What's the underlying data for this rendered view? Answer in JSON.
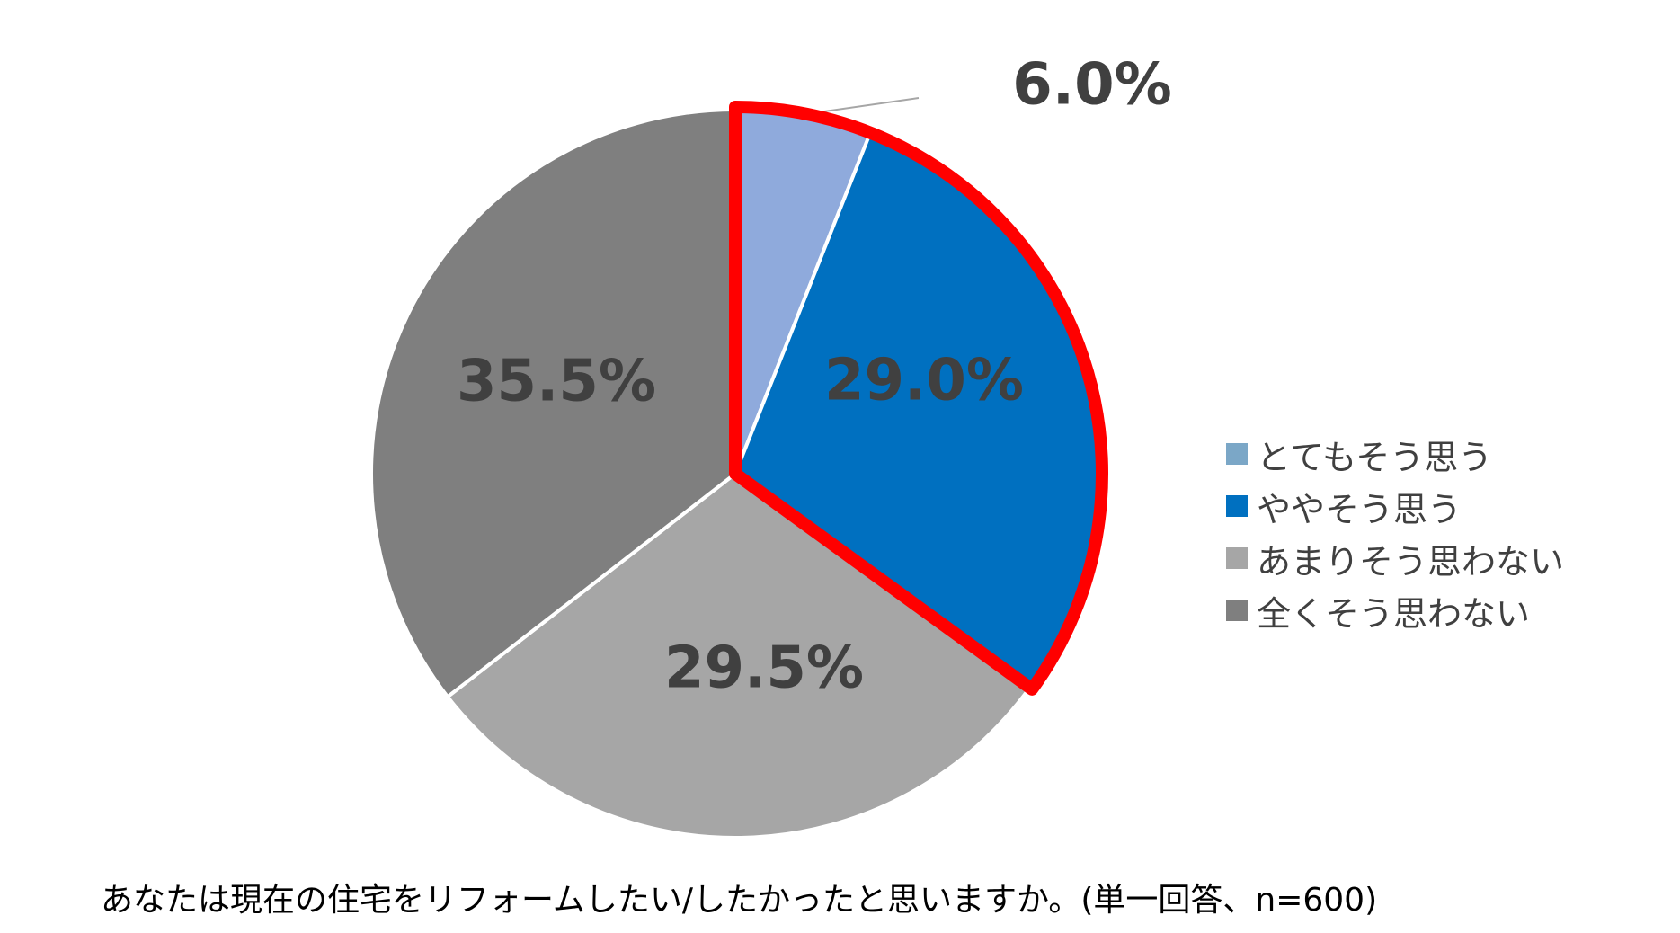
{
  "chart_data": {
    "type": "pie",
    "categories": [
      "とてもそう思う",
      "ややそう思う",
      "あまりそう思わない",
      "全くそう思わない"
    ],
    "values": [
      6.0,
      29.0,
      29.5,
      35.5
    ],
    "data_labels": [
      "6.0%",
      "29.0%",
      "29.5%",
      "35.5%"
    ],
    "colors": [
      "#8FAADC",
      "#0070C0",
      "#A6A6A6",
      "#7F7F7F"
    ],
    "legend_colors": [
      "#7BA7C7",
      "#0070C0",
      "#A6A6A6",
      "#7F7F7F"
    ],
    "highlight_color": "#FF0000",
    "highlighted_categories": [
      "とてもそう思う",
      "ややそう思う"
    ],
    "legend_position": "right",
    "start_angle": "12 o'clock",
    "direction": "clockwise"
  },
  "caption": "あなたは現在の住宅をリフォームしたい/したかったと思いますか。(単一回答、n=600)"
}
